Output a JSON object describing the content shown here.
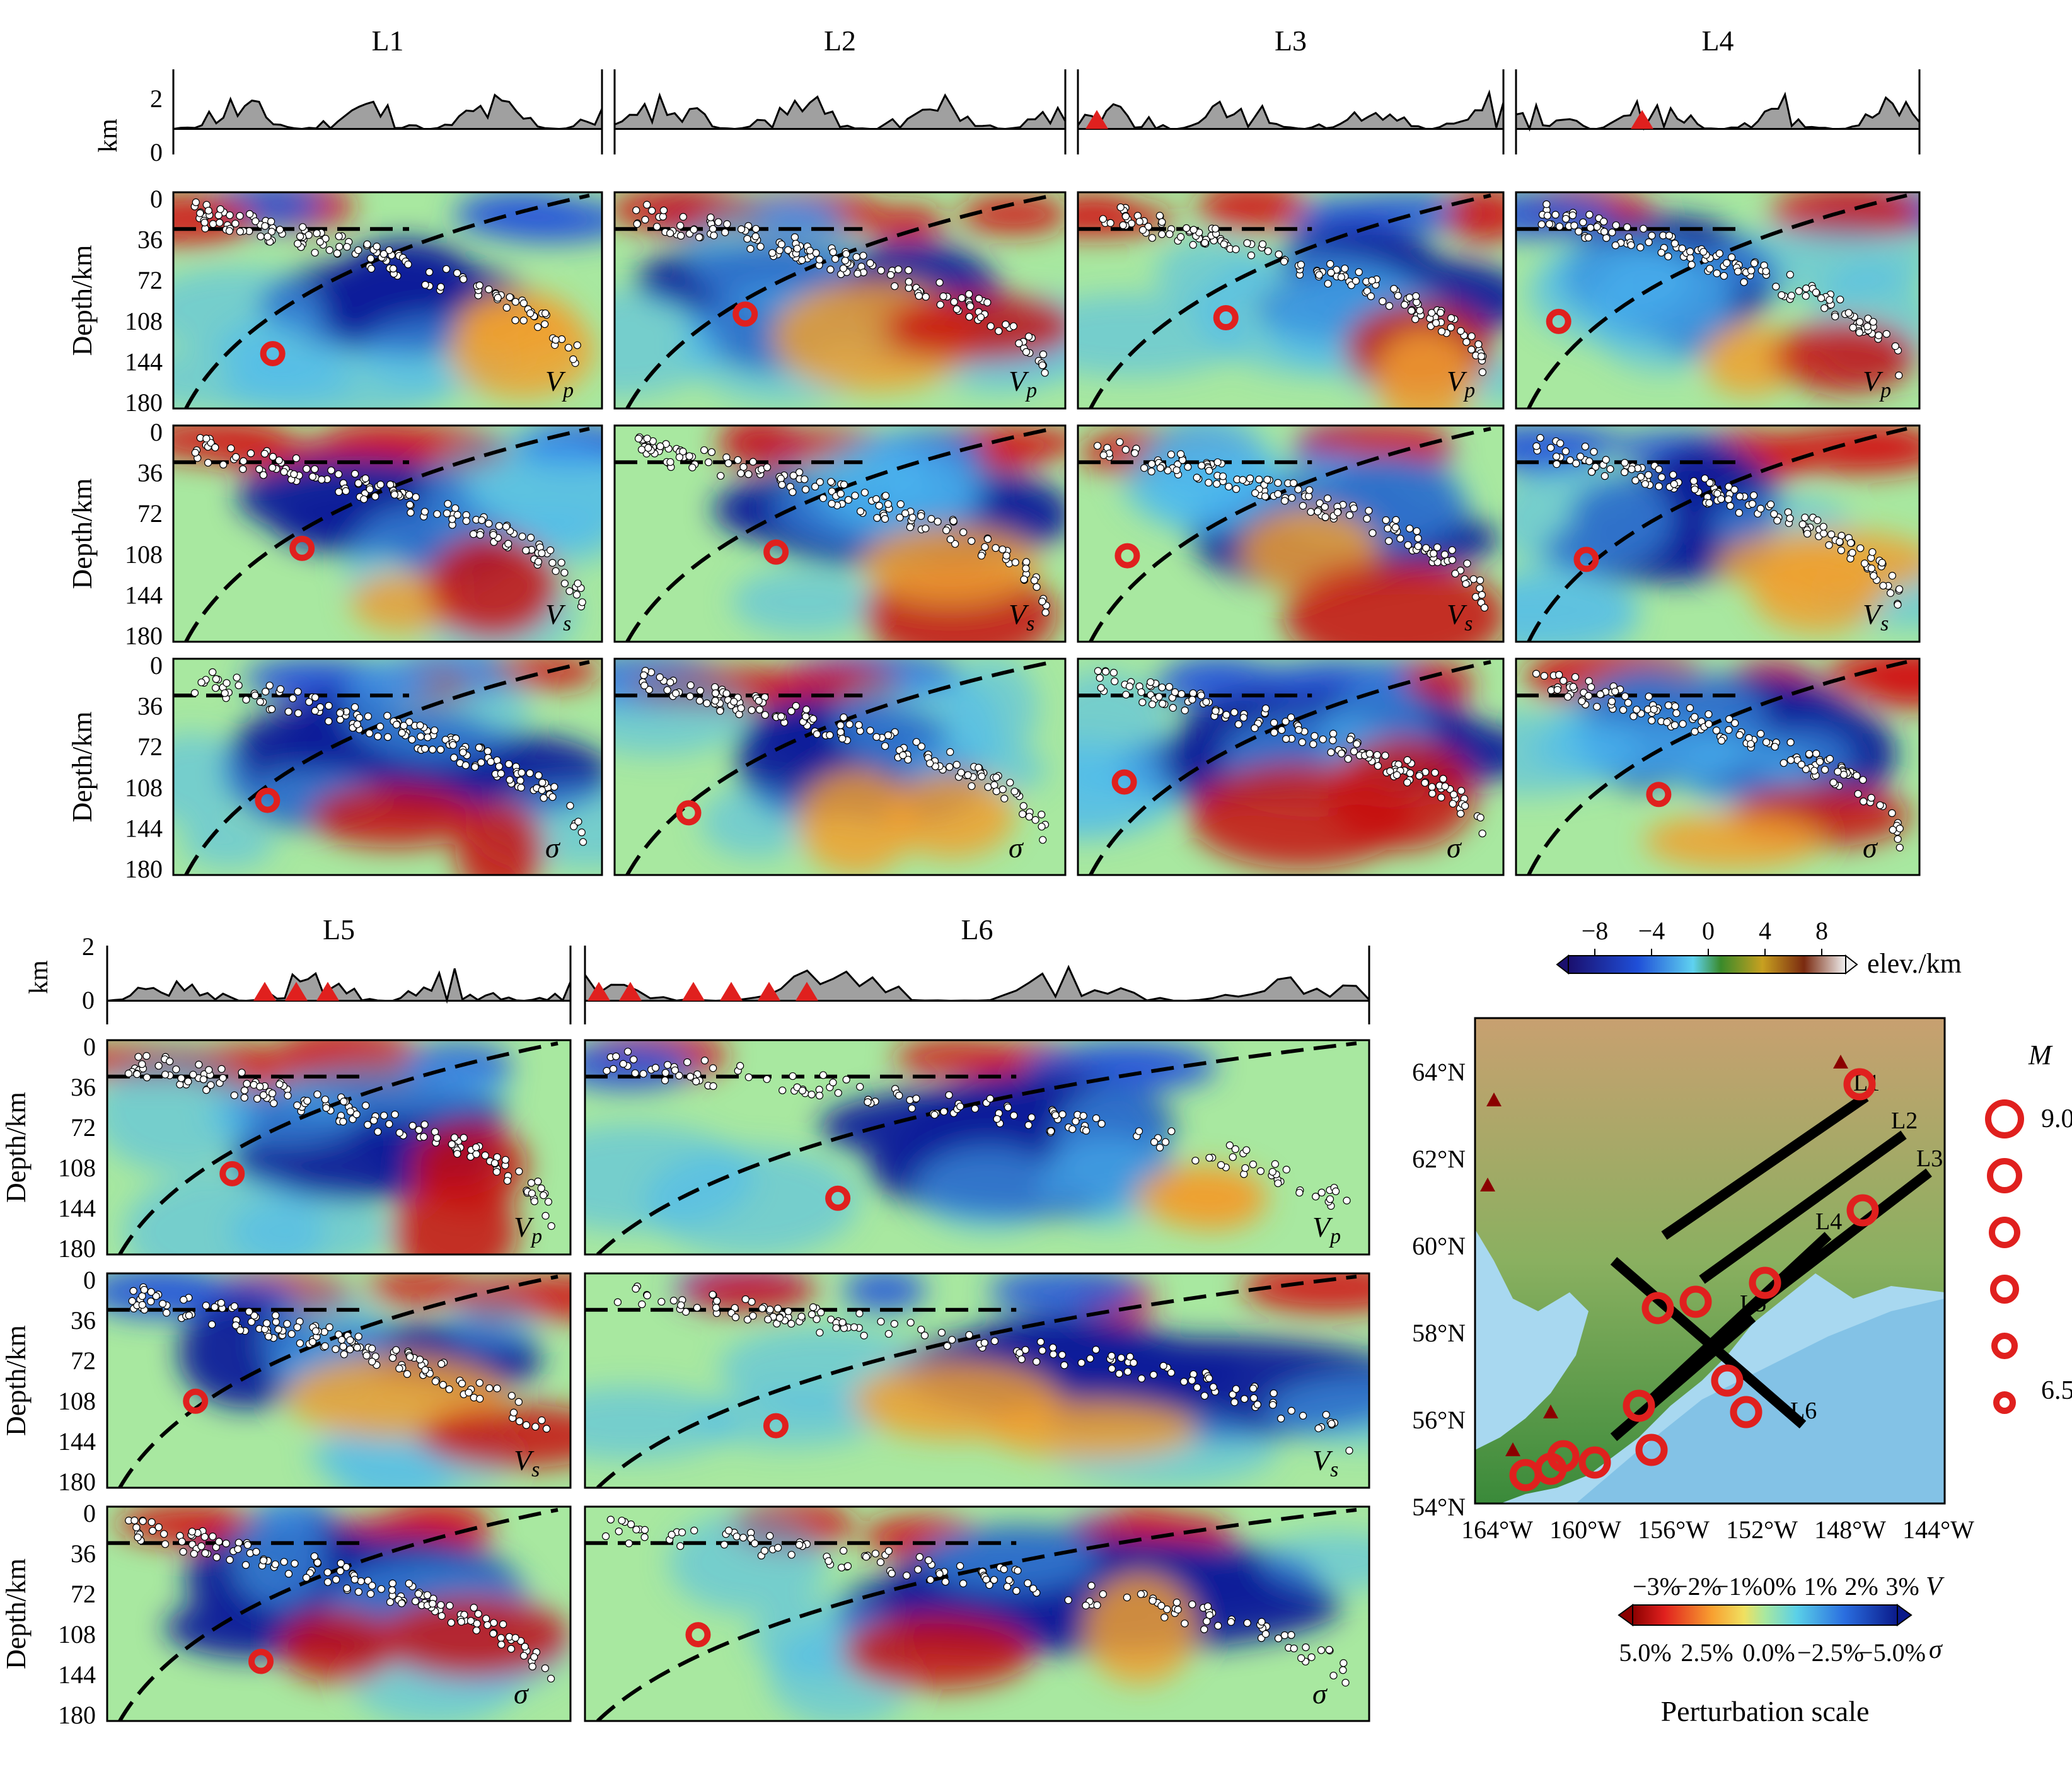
{
  "profiles": [
    {
      "id": "L1"
    },
    {
      "id": "L2"
    },
    {
      "id": "L3"
    },
    {
      "id": "L4"
    },
    {
      "id": "L5"
    },
    {
      "id": "L6"
    }
  ],
  "labels": {
    "km": "km",
    "depth": "Depth/km",
    "vp_main": "V",
    "vp_sub": "p",
    "vs_main": "V",
    "vs_sub": "s",
    "sigma": "σ"
  },
  "elev_ticks": [
    "2",
    "0"
  ],
  "depth_ticks": [
    "0",
    "36",
    "72",
    "108",
    "144",
    "180"
  ],
  "elevation_colorbar": {
    "ticks": [
      "−8",
      "−4",
      "0",
      "4",
      "8"
    ],
    "label": "elev./km"
  },
  "map": {
    "lat_ticks": [
      "64°N",
      "62°N",
      "60°N",
      "58°N",
      "56°N",
      "54°N"
    ],
    "lon_ticks": [
      "164°W",
      "160°W",
      "156°W",
      "152°W",
      "148°W",
      "144°W"
    ]
  },
  "magnitude_legend": {
    "title": "M",
    "top": "9.0",
    "bottom": "6.5"
  },
  "perturbation_colorbar": {
    "v_ticks": [
      "−3%",
      "−2%",
      "−1%",
      "0%",
      "1%",
      "2%",
      "3%"
    ],
    "v_symbol": "V",
    "sigma_ticks": [
      "5.0%",
      "2.5%",
      "0.0%",
      "−2.5%",
      "−5.0%"
    ],
    "sigma_symbol": "σ",
    "title": "Perturbation scale"
  },
  "colors": {
    "red": "#e0201e",
    "deep_blue": "#0a1a8a",
    "background_green": "#a8e8a0"
  }
}
